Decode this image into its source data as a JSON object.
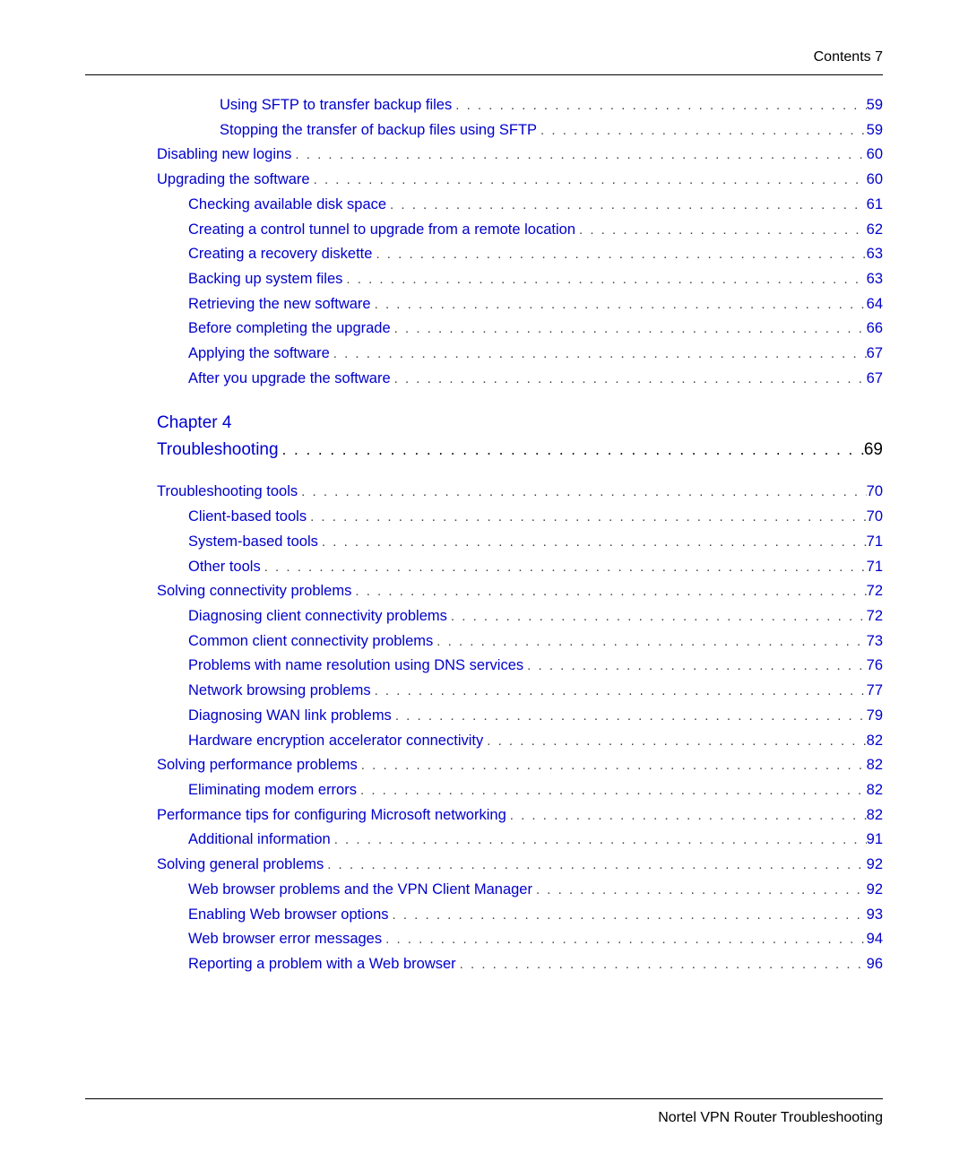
{
  "header": {
    "text": "Contents  7"
  },
  "footer": {
    "text": "Nortel VPN Router Troubleshooting"
  },
  "chapter": {
    "label": "Chapter 4",
    "title": "Troubleshooting",
    "page": "69"
  },
  "pre_entries": [
    {
      "title": "Using SFTP to transfer backup files",
      "page": "59",
      "indent": 2
    },
    {
      "title": "Stopping the transfer of backup files using SFTP",
      "page": "59",
      "indent": 2
    },
    {
      "title": "Disabling new logins",
      "page": "60",
      "indent": 0
    },
    {
      "title": "Upgrading the software",
      "page": "60",
      "indent": 0
    },
    {
      "title": "Checking available disk space",
      "page": "61",
      "indent": 1
    },
    {
      "title": "Creating a control tunnel to upgrade from a remote location",
      "page": "62",
      "indent": 1
    },
    {
      "title": "Creating a recovery diskette",
      "page": "63",
      "indent": 1
    },
    {
      "title": "Backing up system files",
      "page": "63",
      "indent": 1
    },
    {
      "title": "Retrieving the new software",
      "page": "64",
      "indent": 1
    },
    {
      "title": "Before completing the upgrade",
      "page": "66",
      "indent": 1
    },
    {
      "title": "Applying the software",
      "page": "67",
      "indent": 1
    },
    {
      "title": "After you upgrade the software",
      "page": "67",
      "indent": 1
    }
  ],
  "post_entries": [
    {
      "title": "Troubleshooting tools",
      "page": "70",
      "indent": 0
    },
    {
      "title": "Client-based tools",
      "page": "70",
      "indent": 1
    },
    {
      "title": "System-based tools",
      "page": "71",
      "indent": 1
    },
    {
      "title": "Other tools",
      "page": "71",
      "indent": 1
    },
    {
      "title": "Solving connectivity problems",
      "page": "72",
      "indent": 0
    },
    {
      "title": "Diagnosing client connectivity problems",
      "page": "72",
      "indent": 1
    },
    {
      "title": "Common client connectivity problems",
      "page": "73",
      "indent": 1
    },
    {
      "title": "Problems with name resolution using DNS services",
      "page": "76",
      "indent": 1
    },
    {
      "title": "Network browsing problems",
      "page": "77",
      "indent": 1
    },
    {
      "title": "Diagnosing WAN link problems",
      "page": "79",
      "indent": 1
    },
    {
      "title": "Hardware encryption accelerator connectivity",
      "page": "82",
      "indent": 1
    },
    {
      "title": "Solving performance problems",
      "page": "82",
      "indent": 0
    },
    {
      "title": "Eliminating modem errors",
      "page": "82",
      "indent": 1
    },
    {
      "title": "Performance tips for configuring Microsoft networking",
      "page": "82",
      "indent": 0
    },
    {
      "title": "Additional information",
      "page": "91",
      "indent": 1
    },
    {
      "title": "Solving general problems",
      "page": "92",
      "indent": 0
    },
    {
      "title": "Web browser problems and the VPN Client Manager",
      "page": "92",
      "indent": 1
    },
    {
      "title": "Enabling Web browser options",
      "page": "93",
      "indent": 1
    },
    {
      "title": "Web browser error messages",
      "page": "94",
      "indent": 1
    },
    {
      "title": "Reporting a problem with a Web browser",
      "page": "96",
      "indent": 1
    }
  ]
}
